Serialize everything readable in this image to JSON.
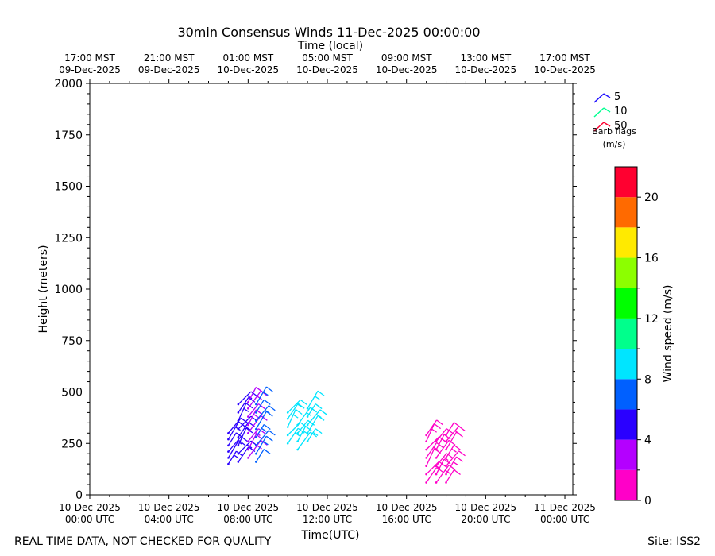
{
  "chart_data": {
    "type": "barb-profile",
    "title": "30min Consensus Winds 11-Dec-2025 00:00:00",
    "top_axis_label": "Time (local)",
    "xlabel": "Time(UTC)",
    "ylabel": "Height (meters)",
    "ylim": [
      0,
      2000
    ],
    "y_ticks": [
      0,
      250,
      500,
      750,
      1000,
      1250,
      1500,
      1750,
      2000
    ],
    "x_range_hours": [
      0,
      24.4
    ],
    "bottom_ticks": [
      {
        "hour": 0,
        "line1": "10-Dec-2025",
        "line2": "00:00 UTC"
      },
      {
        "hour": 4,
        "line1": "10-Dec-2025",
        "line2": "04:00 UTC"
      },
      {
        "hour": 8,
        "line1": "10-Dec-2025",
        "line2": "08:00 UTC"
      },
      {
        "hour": 12,
        "line1": "10-Dec-2025",
        "line2": "12:00 UTC"
      },
      {
        "hour": 16,
        "line1": "10-Dec-2025",
        "line2": "16:00 UTC"
      },
      {
        "hour": 20,
        "line1": "10-Dec-2025",
        "line2": "20:00 UTC"
      },
      {
        "hour": 24,
        "line1": "11-Dec-2025",
        "line2": "00:00 UTC"
      }
    ],
    "top_ticks": [
      {
        "hour": 0,
        "line1": "17:00 MST",
        "line2": "09-Dec-2025"
      },
      {
        "hour": 4,
        "line1": "21:00 MST",
        "line2": "09-Dec-2025"
      },
      {
        "hour": 8,
        "line1": "01:00 MST",
        "line2": "10-Dec-2025"
      },
      {
        "hour": 12,
        "line1": "05:00 MST",
        "line2": "10-Dec-2025"
      },
      {
        "hour": 16,
        "line1": "09:00 MST",
        "line2": "10-Dec-2025"
      },
      {
        "hour": 20,
        "line1": "13:00 MST",
        "line2": "10-Dec-2025"
      },
      {
        "hour": 24,
        "line1": "17:00 MST",
        "line2": "10-Dec-2025"
      }
    ],
    "barb_legend": {
      "entries": [
        {
          "label": "5",
          "color": "#2010ff"
        },
        {
          "label": "10",
          "color": "#00ff90"
        },
        {
          "label": "50",
          "color": "#ff0030"
        }
      ],
      "title_line1": "Barb flags",
      "title_line2": "(m/s)"
    },
    "colorbar": {
      "label": "Wind speed (m/s)",
      "min": 0,
      "max": 22,
      "tick_values": [
        0,
        4,
        8,
        12,
        16,
        20
      ],
      "tick_labels": [
        "0",
        "4",
        "8",
        "12",
        "16",
        "20"
      ],
      "colors": [
        "#ff00c8",
        "#b400ff",
        "#2a00ff",
        "#0060ff",
        "#00e5ff",
        "#00ff8c",
        "#00ff00",
        "#8cff00",
        "#ffea00",
        "#ff6a00",
        "#ff0030"
      ]
    },
    "barb_columns": [
      {
        "hour": 7.0,
        "color": "#2a00ff",
        "heights": [
          150,
          180,
          210,
          240,
          270,
          300
        ]
      },
      {
        "hour": 7.5,
        "color": "#2a00ff",
        "heights": [
          160,
          200,
          240,
          280,
          320,
          360,
          400,
          440
        ]
      },
      {
        "hour": 8.0,
        "color": "#b400ff",
        "heights": [
          180,
          220,
          260,
          300,
          340,
          380,
          420,
          450
        ]
      },
      {
        "hour": 8.4,
        "color": "#0060ff",
        "heights": [
          160,
          200,
          240,
          280,
          320,
          360,
          400,
          440
        ]
      },
      {
        "hour": 10.0,
        "color": "#00e5ff",
        "heights": [
          250,
          290,
          330,
          370,
          400
        ]
      },
      {
        "hour": 10.5,
        "color": "#00e5ff",
        "heights": [
          220,
          260,
          300,
          340
        ]
      },
      {
        "hour": 11.0,
        "color": "#00e5ff",
        "heights": [
          260,
          300,
          340,
          380,
          420
        ]
      },
      {
        "hour": 17.0,
        "color": "#ff00c8",
        "heights": [
          60,
          100,
          140,
          180,
          220,
          260,
          290
        ]
      },
      {
        "hour": 17.5,
        "color": "#ff00c8",
        "heights": [
          60,
          100,
          140,
          180,
          220,
          260
        ]
      },
      {
        "hour": 18.0,
        "color": "#ff00c8",
        "heights": [
          60,
          100,
          140,
          180,
          220,
          260,
          290
        ]
      }
    ]
  },
  "footer": {
    "left": "REAL TIME DATA, NOT CHECKED FOR QUALITY",
    "right": "Site: ISS2"
  }
}
